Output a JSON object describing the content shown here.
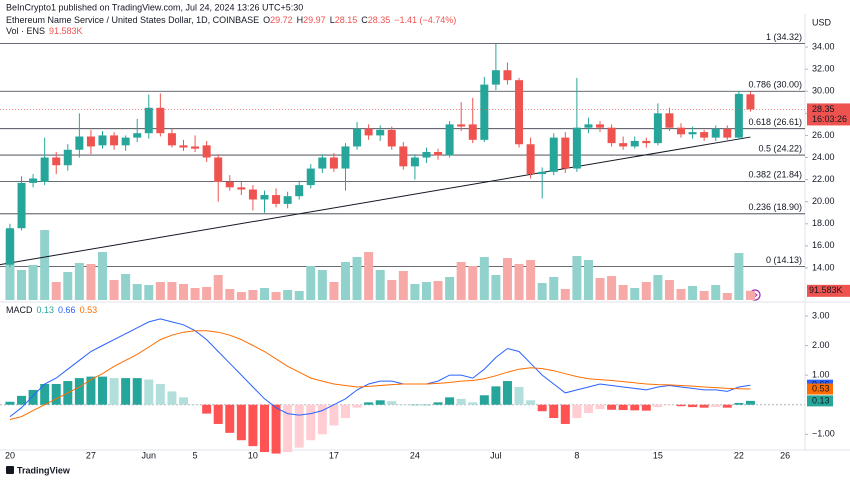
{
  "header": {
    "published": "BeInCrypto1 published on TradingView.com, Jul 24, 2024 13:26 UTC+5:30"
  },
  "footer": {
    "brand": "TradingView"
  },
  "chart_data": [
    {
      "type": "candlestick",
      "title": "Ethereum Name Service / United States Dollar, 1D, COINBASE",
      "legend_items": [
        {
          "label": "O",
          "value": 29.72
        },
        {
          "label": "H",
          "value": 29.97
        },
        {
          "label": "L",
          "value": 28.15
        },
        {
          "label": "C",
          "value": 28.35
        }
      ],
      "change": "−1.41 (−4.74%)",
      "axis_label": "USD",
      "countdown": "16:03:26",
      "up_color": "#26a69a",
      "down_color": "#ef5350",
      "grid": false,
      "categories": [
        "20",
        null,
        null,
        null,
        null,
        null,
        null,
        "27",
        null,
        null,
        null,
        null,
        "Jun",
        null,
        null,
        null,
        "5",
        null,
        null,
        null,
        null,
        "10",
        null,
        null,
        null,
        null,
        null,
        null,
        "17",
        null,
        null,
        null,
        null,
        null,
        null,
        "24",
        null,
        null,
        null,
        null,
        null,
        null,
        "Jul",
        null,
        null,
        null,
        null,
        null,
        null,
        "8",
        null,
        null,
        null,
        null,
        null,
        null,
        "15",
        null,
        null,
        null,
        null,
        null,
        null,
        "22",
        null,
        null,
        null,
        "26",
        null
      ],
      "open": [
        14.3,
        17.6,
        21.7,
        21.8,
        24.0,
        23.3,
        24.7,
        25.9,
        25.1,
        26.0,
        25.1,
        25.8,
        26.2,
        28.5,
        26.2,
        25.1,
        25.0,
        25.1,
        24.0,
        21.8,
        21.3,
        21.1,
        20.2,
        20.6,
        19.8,
        20.5,
        21.5,
        23.0,
        24.0,
        23.0,
        25.0,
        26.6,
        26.0,
        26.5,
        25.0,
        23.2,
        24.0,
        24.5,
        24.2,
        27.0,
        27.0,
        25.6,
        30.6,
        31.9,
        31.0,
        25.2,
        22.5,
        22.7,
        25.8,
        23.0,
        26.7,
        27.0,
        26.7,
        25.3,
        25.0,
        25.5,
        25.3,
        28.0,
        26.7,
        26.1,
        26.3,
        25.8,
        26.6,
        25.8,
        29.72,
        null,
        null,
        null,
        null
      ],
      "high": [
        18.0,
        22.3,
        22.5,
        25.8,
        24.5,
        25.2,
        28.0,
        26.5,
        26.4,
        26.3,
        26.0,
        27.5,
        29.7,
        29.8,
        26.6,
        25.6,
        26.0,
        25.5,
        24.3,
        22.4,
        21.8,
        21.5,
        21.0,
        21.2,
        20.9,
        21.9,
        23.4,
        24.3,
        24.4,
        25.3,
        27.2,
        27.0,
        26.9,
        26.8,
        25.4,
        24.3,
        24.9,
        24.8,
        27.3,
        29.0,
        29.4,
        31.3,
        34.3,
        32.6,
        31.2,
        25.8,
        23.1,
        26.2,
        26.3,
        31.2,
        27.6,
        27.3,
        27.0,
        25.9,
        25.9,
        25.8,
        28.9,
        28.5,
        27.1,
        26.8,
        26.5,
        26.9,
        26.9,
        30.0,
        29.97,
        null,
        null,
        null,
        null
      ],
      "low": [
        14.1,
        17.4,
        21.3,
        21.5,
        22.5,
        22.8,
        24.0,
        24.3,
        24.8,
        24.7,
        24.6,
        25.4,
        25.7,
        25.9,
        24.9,
        24.6,
        24.5,
        23.6,
        20.0,
        21.0,
        20.6,
        19.2,
        19.0,
        19.5,
        19.4,
        20.2,
        21.2,
        22.6,
        22.7,
        21.0,
        24.7,
        25.6,
        25.5,
        24.7,
        22.9,
        22.0,
        23.5,
        23.8,
        24.0,
        26.4,
        25.3,
        25.4,
        30.1,
        30.6,
        24.9,
        22.1,
        20.3,
        22.4,
        22.6,
        22.7,
        26.2,
        26.3,
        25.0,
        24.7,
        24.8,
        24.9,
        25.1,
        26.4,
        25.8,
        25.7,
        25.5,
        25.5,
        25.6,
        25.6,
        28.15,
        null,
        null,
        null,
        null
      ],
      "close": [
        17.6,
        21.7,
        22.1,
        24.0,
        23.3,
        24.7,
        25.9,
        25.0,
        26.0,
        25.1,
        25.8,
        26.2,
        28.5,
        26.2,
        25.1,
        24.9,
        24.8,
        24.0,
        21.8,
        21.3,
        21.1,
        20.2,
        20.6,
        19.8,
        20.5,
        21.5,
        23.0,
        24.0,
        23.0,
        25.0,
        26.6,
        26.0,
        26.5,
        25.0,
        23.2,
        24.0,
        24.5,
        24.2,
        27.0,
        26.8,
        25.6,
        30.6,
        31.9,
        31.0,
        25.2,
        22.5,
        22.7,
        25.8,
        23.0,
        26.7,
        27.0,
        26.7,
        25.3,
        25.0,
        25.5,
        25.3,
        28.0,
        26.7,
        26.1,
        26.3,
        25.8,
        26.6,
        25.8,
        29.76,
        28.35,
        null,
        null,
        null,
        null
      ],
      "ylim": [
        11.1,
        36.9
      ],
      "yticks": [
        {
          "value": 14,
          "label": "14.00"
        },
        {
          "value": 16,
          "label": "16.00"
        },
        {
          "value": 18,
          "label": "18.00"
        },
        {
          "value": 20,
          "label": "20.00"
        },
        {
          "value": 22,
          "label": "22.00"
        },
        {
          "value": 24,
          "label": "24.00"
        },
        {
          "value": 26,
          "label": "26.00"
        },
        {
          "value": 28,
          "label": "28.00"
        },
        {
          "value": 30,
          "label": "30.00"
        },
        {
          "value": 32,
          "label": "32.00"
        },
        {
          "value": 34,
          "label": "34.00"
        }
      ],
      "fib_levels": [
        {
          "value": 34.32,
          "label": "1 (34.32)"
        },
        {
          "value": 30.0,
          "label": "0.786 (30.00)"
        },
        {
          "value": 26.61,
          "label": "0.618 (26.61)"
        },
        {
          "value": 24.22,
          "label": "0.5 (24.22)"
        },
        {
          "value": 21.84,
          "label": "0.382 (21.84)"
        },
        {
          "value": 18.9,
          "label": "0.236 (18.90)"
        },
        {
          "value": 14.13,
          "label": "0 (14.13)"
        }
      ],
      "trendline": {
        "x": [
          0,
          64
        ],
        "y": [
          14.3,
          25.85
        ]
      }
    },
    {
      "type": "volume",
      "title": "Vol · ENS",
      "legend_value": "91.583K",
      "up_color": "#92d2cc",
      "down_color": "#f7a9a7",
      "values": [
        700,
        300,
        350,
        700,
        180,
        280,
        370,
        360,
        480,
        200,
        260,
        160,
        150,
        180,
        180,
        160,
        120,
        130,
        250,
        110,
        80,
        100,
        120,
        80,
        100,
        90,
        340,
        300,
        180,
        380,
        430,
        480,
        300,
        200,
        290,
        160,
        180,
        190,
        230,
        380,
        340,
        430,
        250,
        420,
        360,
        400,
        170,
        230,
        110,
        440,
        400,
        220,
        240,
        150,
        120,
        180,
        250,
        200,
        110,
        140,
        90,
        150,
        70,
        470,
        91.583,
        null,
        null,
        null,
        null
      ],
      "value_labels": {
        "64": "91.583K"
      },
      "ylim": [
        0,
        900
      ]
    },
    {
      "type": "macd",
      "title": "MACD",
      "macd_color": "#2962ff",
      "signal_color": "#ff6d00",
      "hist_colors": {
        "pos_up": "#26a69a",
        "pos_down": "#b2dfdb",
        "neg_down": "#ff5252",
        "neg_up": "#ffcdd2"
      },
      "macd": [
        -0.4,
        -0.1,
        0.3,
        0.7,
        0.9,
        1.2,
        1.5,
        1.8,
        2.0,
        2.2,
        2.4,
        2.6,
        2.8,
        2.9,
        2.8,
        2.7,
        2.5,
        2.2,
        1.8,
        1.4,
        1.0,
        0.6,
        0.2,
        -0.1,
        -0.3,
        -0.35,
        -0.3,
        -0.2,
        0.0,
        0.2,
        0.5,
        0.7,
        0.8,
        0.8,
        0.7,
        0.7,
        0.7,
        0.8,
        1.0,
        1.0,
        0.9,
        1.2,
        1.6,
        1.9,
        1.8,
        1.4,
        1.0,
        0.7,
        0.4,
        0.5,
        0.6,
        0.7,
        0.65,
        0.6,
        0.55,
        0.5,
        0.6,
        0.65,
        0.6,
        0.55,
        0.5,
        0.5,
        0.45,
        0.6,
        0.66,
        null,
        null,
        null,
        null
      ],
      "signal": [
        -0.5,
        -0.4,
        -0.2,
        0.0,
        0.2,
        0.4,
        0.6,
        0.85,
        1.05,
        1.3,
        1.5,
        1.7,
        1.95,
        2.2,
        2.35,
        2.45,
        2.5,
        2.5,
        2.45,
        2.35,
        2.2,
        2.0,
        1.8,
        1.55,
        1.3,
        1.1,
        0.9,
        0.8,
        0.7,
        0.65,
        0.6,
        0.62,
        0.65,
        0.68,
        0.7,
        0.7,
        0.7,
        0.72,
        0.75,
        0.8,
        0.82,
        0.88,
        0.98,
        1.1,
        1.2,
        1.25,
        1.22,
        1.15,
        1.05,
        0.95,
        0.88,
        0.85,
        0.82,
        0.78,
        0.74,
        0.7,
        0.68,
        0.67,
        0.65,
        0.63,
        0.6,
        0.58,
        0.55,
        0.54,
        0.53,
        null,
        null,
        null,
        null
      ],
      "histogram": [
        0.1,
        0.3,
        0.5,
        0.7,
        0.7,
        0.8,
        0.9,
        0.95,
        0.95,
        0.9,
        0.9,
        0.9,
        0.85,
        0.7,
        0.45,
        0.25,
        0.0,
        -0.3,
        -0.65,
        -0.95,
        -1.2,
        -1.4,
        -1.6,
        -1.65,
        -1.6,
        -1.45,
        -1.2,
        -1.0,
        -0.7,
        -0.45,
        -0.1,
        0.08,
        0.15,
        0.12,
        0.0,
        0.0,
        0.0,
        0.08,
        0.25,
        0.2,
        0.08,
        0.32,
        0.62,
        0.8,
        0.6,
        0.15,
        -0.22,
        -0.45,
        -0.65,
        -0.45,
        -0.28,
        -0.15,
        -0.17,
        -0.18,
        -0.19,
        -0.2,
        -0.08,
        -0.02,
        -0.05,
        -0.08,
        -0.1,
        -0.08,
        -0.1,
        0.06,
        0.13,
        null,
        null,
        null,
        null
      ],
      "ylim": [
        -1.53,
        3.37
      ],
      "yticks": [
        {
          "value": -1,
          "label": "−1.00"
        },
        {
          "value": 1,
          "label": "1.00"
        },
        {
          "value": 2,
          "label": "2.00"
        },
        {
          "value": 3,
          "label": "3.00"
        }
      ]
    }
  ]
}
